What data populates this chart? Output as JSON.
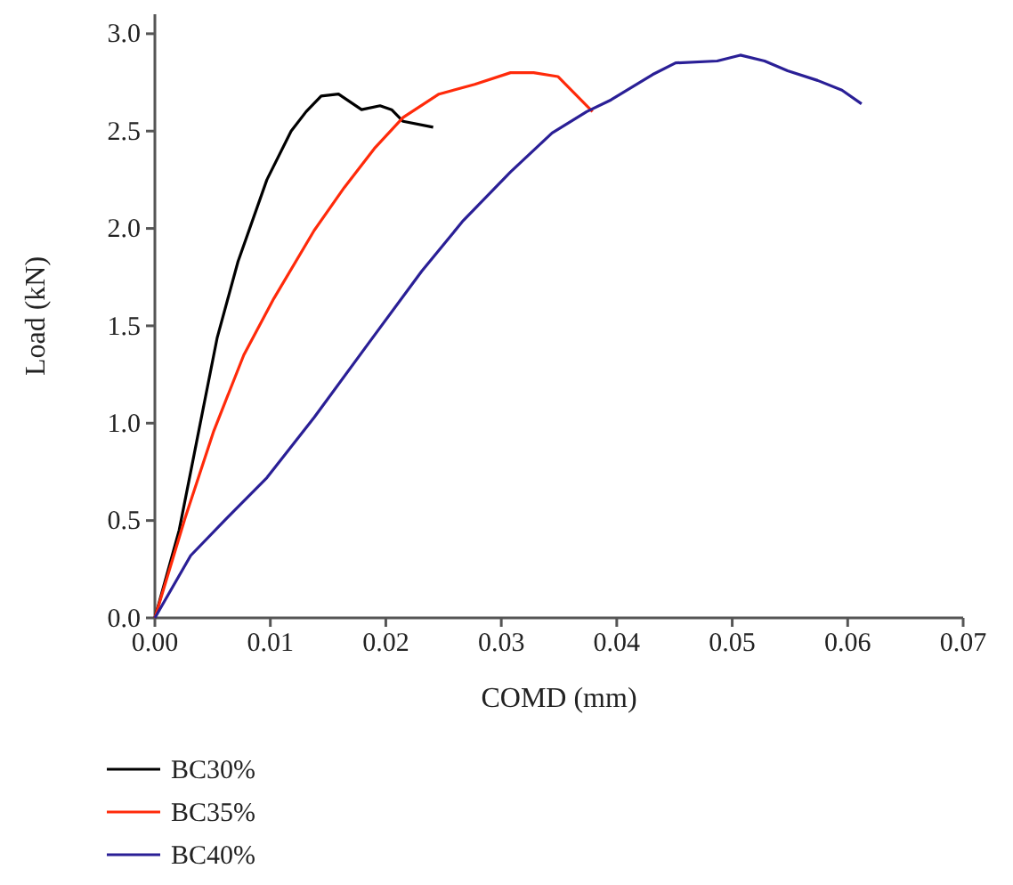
{
  "chart_data": {
    "type": "line",
    "xlabel": "COMD (mm)",
    "ylabel": "Load (kN)",
    "xlim": [
      0,
      0.07
    ],
    "xticks": [
      {
        "value": 0,
        "label": "0.00"
      },
      {
        "value": 0.01,
        "label": "0.01"
      },
      {
        "value": 0.02,
        "label": "0.02"
      },
      {
        "value": 0.03,
        "label": "0.03"
      },
      {
        "value": 0.04,
        "label": "0.04"
      },
      {
        "value": 0.05,
        "label": "0.05"
      },
      {
        "value": 0.06,
        "label": "0.06"
      },
      {
        "value": 0.07,
        "label": "0.07"
      }
    ],
    "ylim": [
      0,
      3.1
    ],
    "yticks": [
      {
        "value": 0,
        "label": "0.0"
      },
      {
        "value": 0.5,
        "label": "0.5"
      },
      {
        "value": 1,
        "label": "1.0"
      },
      {
        "value": 1.5,
        "label": "1.5"
      },
      {
        "value": 2,
        "label": "2.0"
      },
      {
        "value": 2.5,
        "label": "2.5"
      },
      {
        "value": 3,
        "label": "3.0"
      }
    ],
    "grid": false,
    "legend": "bottom left",
    "marker": "none",
    "line_style": "solid",
    "series": [
      {
        "name": "BC30%",
        "color": "#000000",
        "x": [
          0,
          0.0021,
          0.0036,
          0.0054,
          0.0072,
          0.0097,
          0.0118,
          0.0131,
          0.0144,
          0.0159,
          0.0169,
          0.0179,
          0.0195,
          0.0205,
          0.0215,
          0.0241
        ],
        "values": [
          0,
          0.45,
          0.9,
          1.44,
          1.83,
          2.25,
          2.5,
          2.6,
          2.68,
          2.69,
          2.65,
          2.61,
          2.63,
          2.61,
          2.55,
          2.52
        ]
      },
      {
        "name": "BC35%",
        "color": "#ff2a0a",
        "x": [
          0,
          0.0026,
          0.0051,
          0.0077,
          0.0103,
          0.0138,
          0.0164,
          0.019,
          0.0215,
          0.0246,
          0.0277,
          0.0308,
          0.0328,
          0.0349,
          0.0364,
          0.0379
        ],
        "values": [
          0,
          0.51,
          0.96,
          1.35,
          1.64,
          1.99,
          2.21,
          2.41,
          2.57,
          2.69,
          2.74,
          2.8,
          2.8,
          2.78,
          2.69,
          2.6
        ]
      },
      {
        "name": "BC40%",
        "color": "#2a1f96",
        "x": [
          0,
          0.0031,
          0.0062,
          0.0097,
          0.0138,
          0.0185,
          0.0231,
          0.0267,
          0.0308,
          0.0344,
          0.0374,
          0.0395,
          0.0431,
          0.0451,
          0.0487,
          0.0507,
          0.0528,
          0.0548,
          0.0574,
          0.0595,
          0.0612
        ],
        "values": [
          0,
          0.32,
          0.51,
          0.72,
          1.03,
          1.41,
          1.78,
          2.04,
          2.29,
          2.49,
          2.6,
          2.66,
          2.79,
          2.85,
          2.86,
          2.89,
          2.86,
          2.81,
          2.76,
          2.71,
          2.64
        ]
      }
    ]
  }
}
